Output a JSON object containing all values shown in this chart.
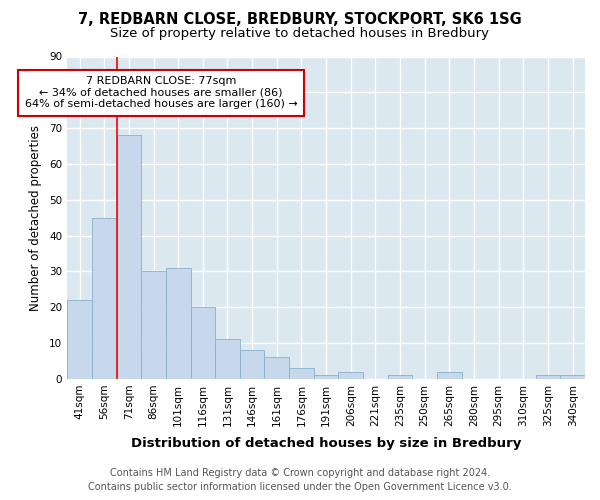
{
  "title1": "7, REDBARN CLOSE, BREDBURY, STOCKPORT, SK6 1SG",
  "title2": "Size of property relative to detached houses in Bredbury",
  "xlabel": "Distribution of detached houses by size in Bredbury",
  "ylabel": "Number of detached properties",
  "categories": [
    "41sqm",
    "56sqm",
    "71sqm",
    "86sqm",
    "101sqm",
    "116sqm",
    "131sqm",
    "146sqm",
    "161sqm",
    "176sqm",
    "191sqm",
    "206sqm",
    "221sqm",
    "235sqm",
    "250sqm",
    "265sqm",
    "280sqm",
    "295sqm",
    "310sqm",
    "325sqm",
    "340sqm"
  ],
  "values": [
    22,
    45,
    68,
    30,
    31,
    20,
    11,
    8,
    6,
    3,
    1,
    2,
    0,
    1,
    0,
    2,
    0,
    0,
    0,
    1,
    1
  ],
  "bar_color": "#c8d8ec",
  "bar_edge_color": "#8ab0cc",
  "red_line_index": 2,
  "annotation_line1": "7 REDBARN CLOSE: 77sqm",
  "annotation_line2": "← 34% of detached houses are smaller (86)",
  "annotation_line3": "64% of semi-detached houses are larger (160) →",
  "annotation_box_color": "white",
  "annotation_box_edge_color": "#cc0000",
  "footer": "Contains HM Land Registry data © Crown copyright and database right 2024.\nContains public sector information licensed under the Open Government Licence v3.0.",
  "ylim": [
    0,
    90
  ],
  "yticks": [
    0,
    10,
    20,
    30,
    40,
    50,
    60,
    70,
    80,
    90
  ],
  "background_color": "#dce8f0",
  "grid_color": "white",
  "title1_fontsize": 10.5,
  "title2_fontsize": 9.5,
  "xlabel_fontsize": 9.5,
  "ylabel_fontsize": 8.5,
  "annotation_fontsize": 8,
  "footer_fontsize": 7,
  "tick_fontsize": 7.5
}
